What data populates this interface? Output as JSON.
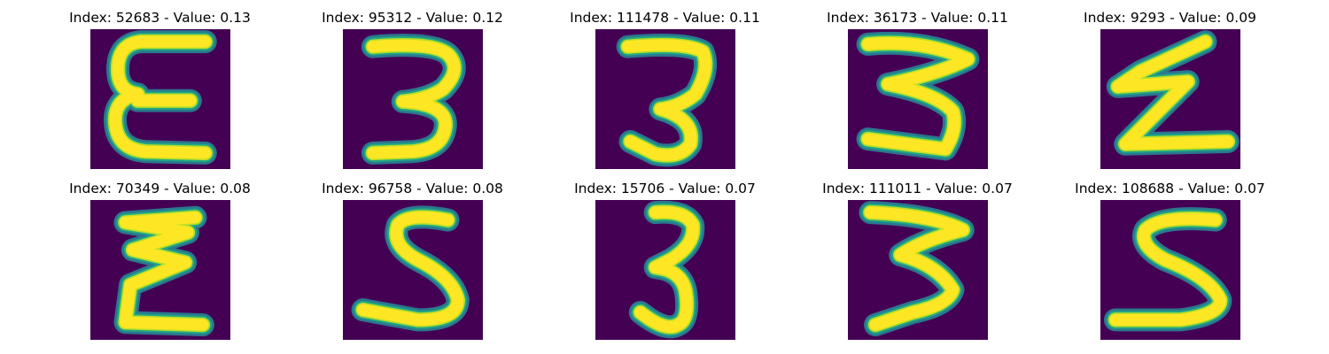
{
  "colors": {
    "background": "#440154",
    "halo": "#2a788e",
    "mid": "#22a884",
    "stroke": "#fde725",
    "stroke_edge": "#bddf26"
  },
  "panels": [
    {
      "title": "Index: 52683 - Value: 0.13",
      "glyph": "E"
    },
    {
      "title": "Index: 95312 - Value: 0.12",
      "glyph": "3"
    },
    {
      "title": "Index: 111478 - Value: 0.11",
      "glyph": "3"
    },
    {
      "title": "Index: 36173 - Value: 0.11",
      "glyph": "3"
    },
    {
      "title": "Index: 9293 - Value: 0.09",
      "glyph": "Z"
    },
    {
      "title": "Index: 70349 - Value: 0.08",
      "glyph": "E"
    },
    {
      "title": "Index: 96758 - Value: 0.08",
      "glyph": "S"
    },
    {
      "title": "Index: 15706 - Value: 0.07",
      "glyph": "3"
    },
    {
      "title": "Index: 111011 - Value: 0.07",
      "glyph": "3"
    },
    {
      "title": "Index: 108688 - Value: 0.07",
      "glyph": "S"
    }
  ]
}
